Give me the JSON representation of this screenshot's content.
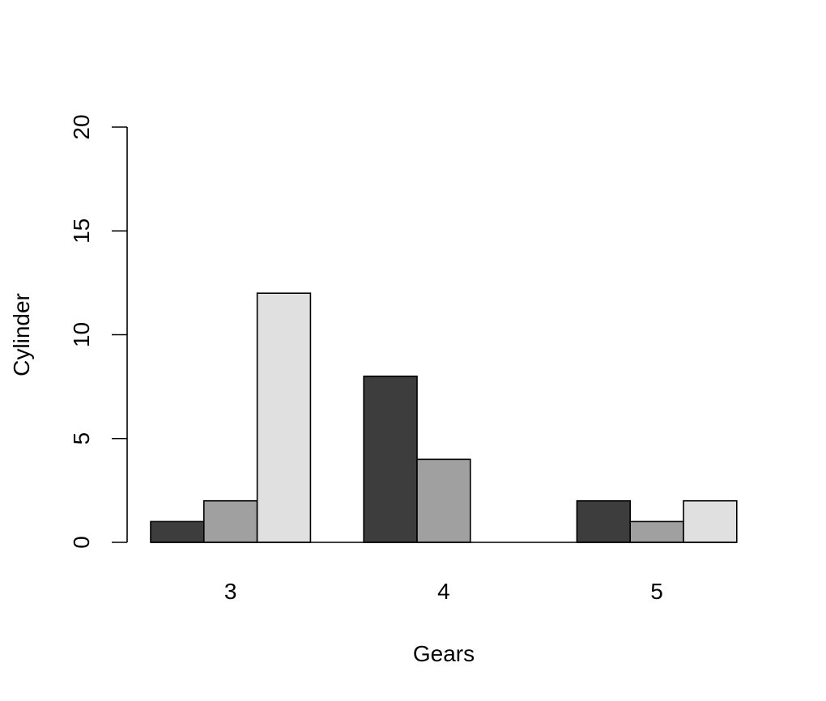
{
  "chart_data": {
    "type": "bar",
    "mode": "grouped",
    "categories": [
      "3",
      "4",
      "5"
    ],
    "series": [
      {
        "values": [
          1,
          8,
          2
        ],
        "color": "#3d3d3d"
      },
      {
        "values": [
          2,
          4,
          1
        ],
        "color": "#a0a0a0"
      },
      {
        "values": [
          12,
          0,
          2
        ],
        "color": "#e0e0e0"
      }
    ],
    "title": "",
    "xlabel": "Gears",
    "ylabel": "Cylinder",
    "ylim": [
      0,
      20
    ],
    "yticks": [
      0,
      5,
      10,
      15,
      20
    ],
    "grid": false,
    "legend": "none"
  }
}
